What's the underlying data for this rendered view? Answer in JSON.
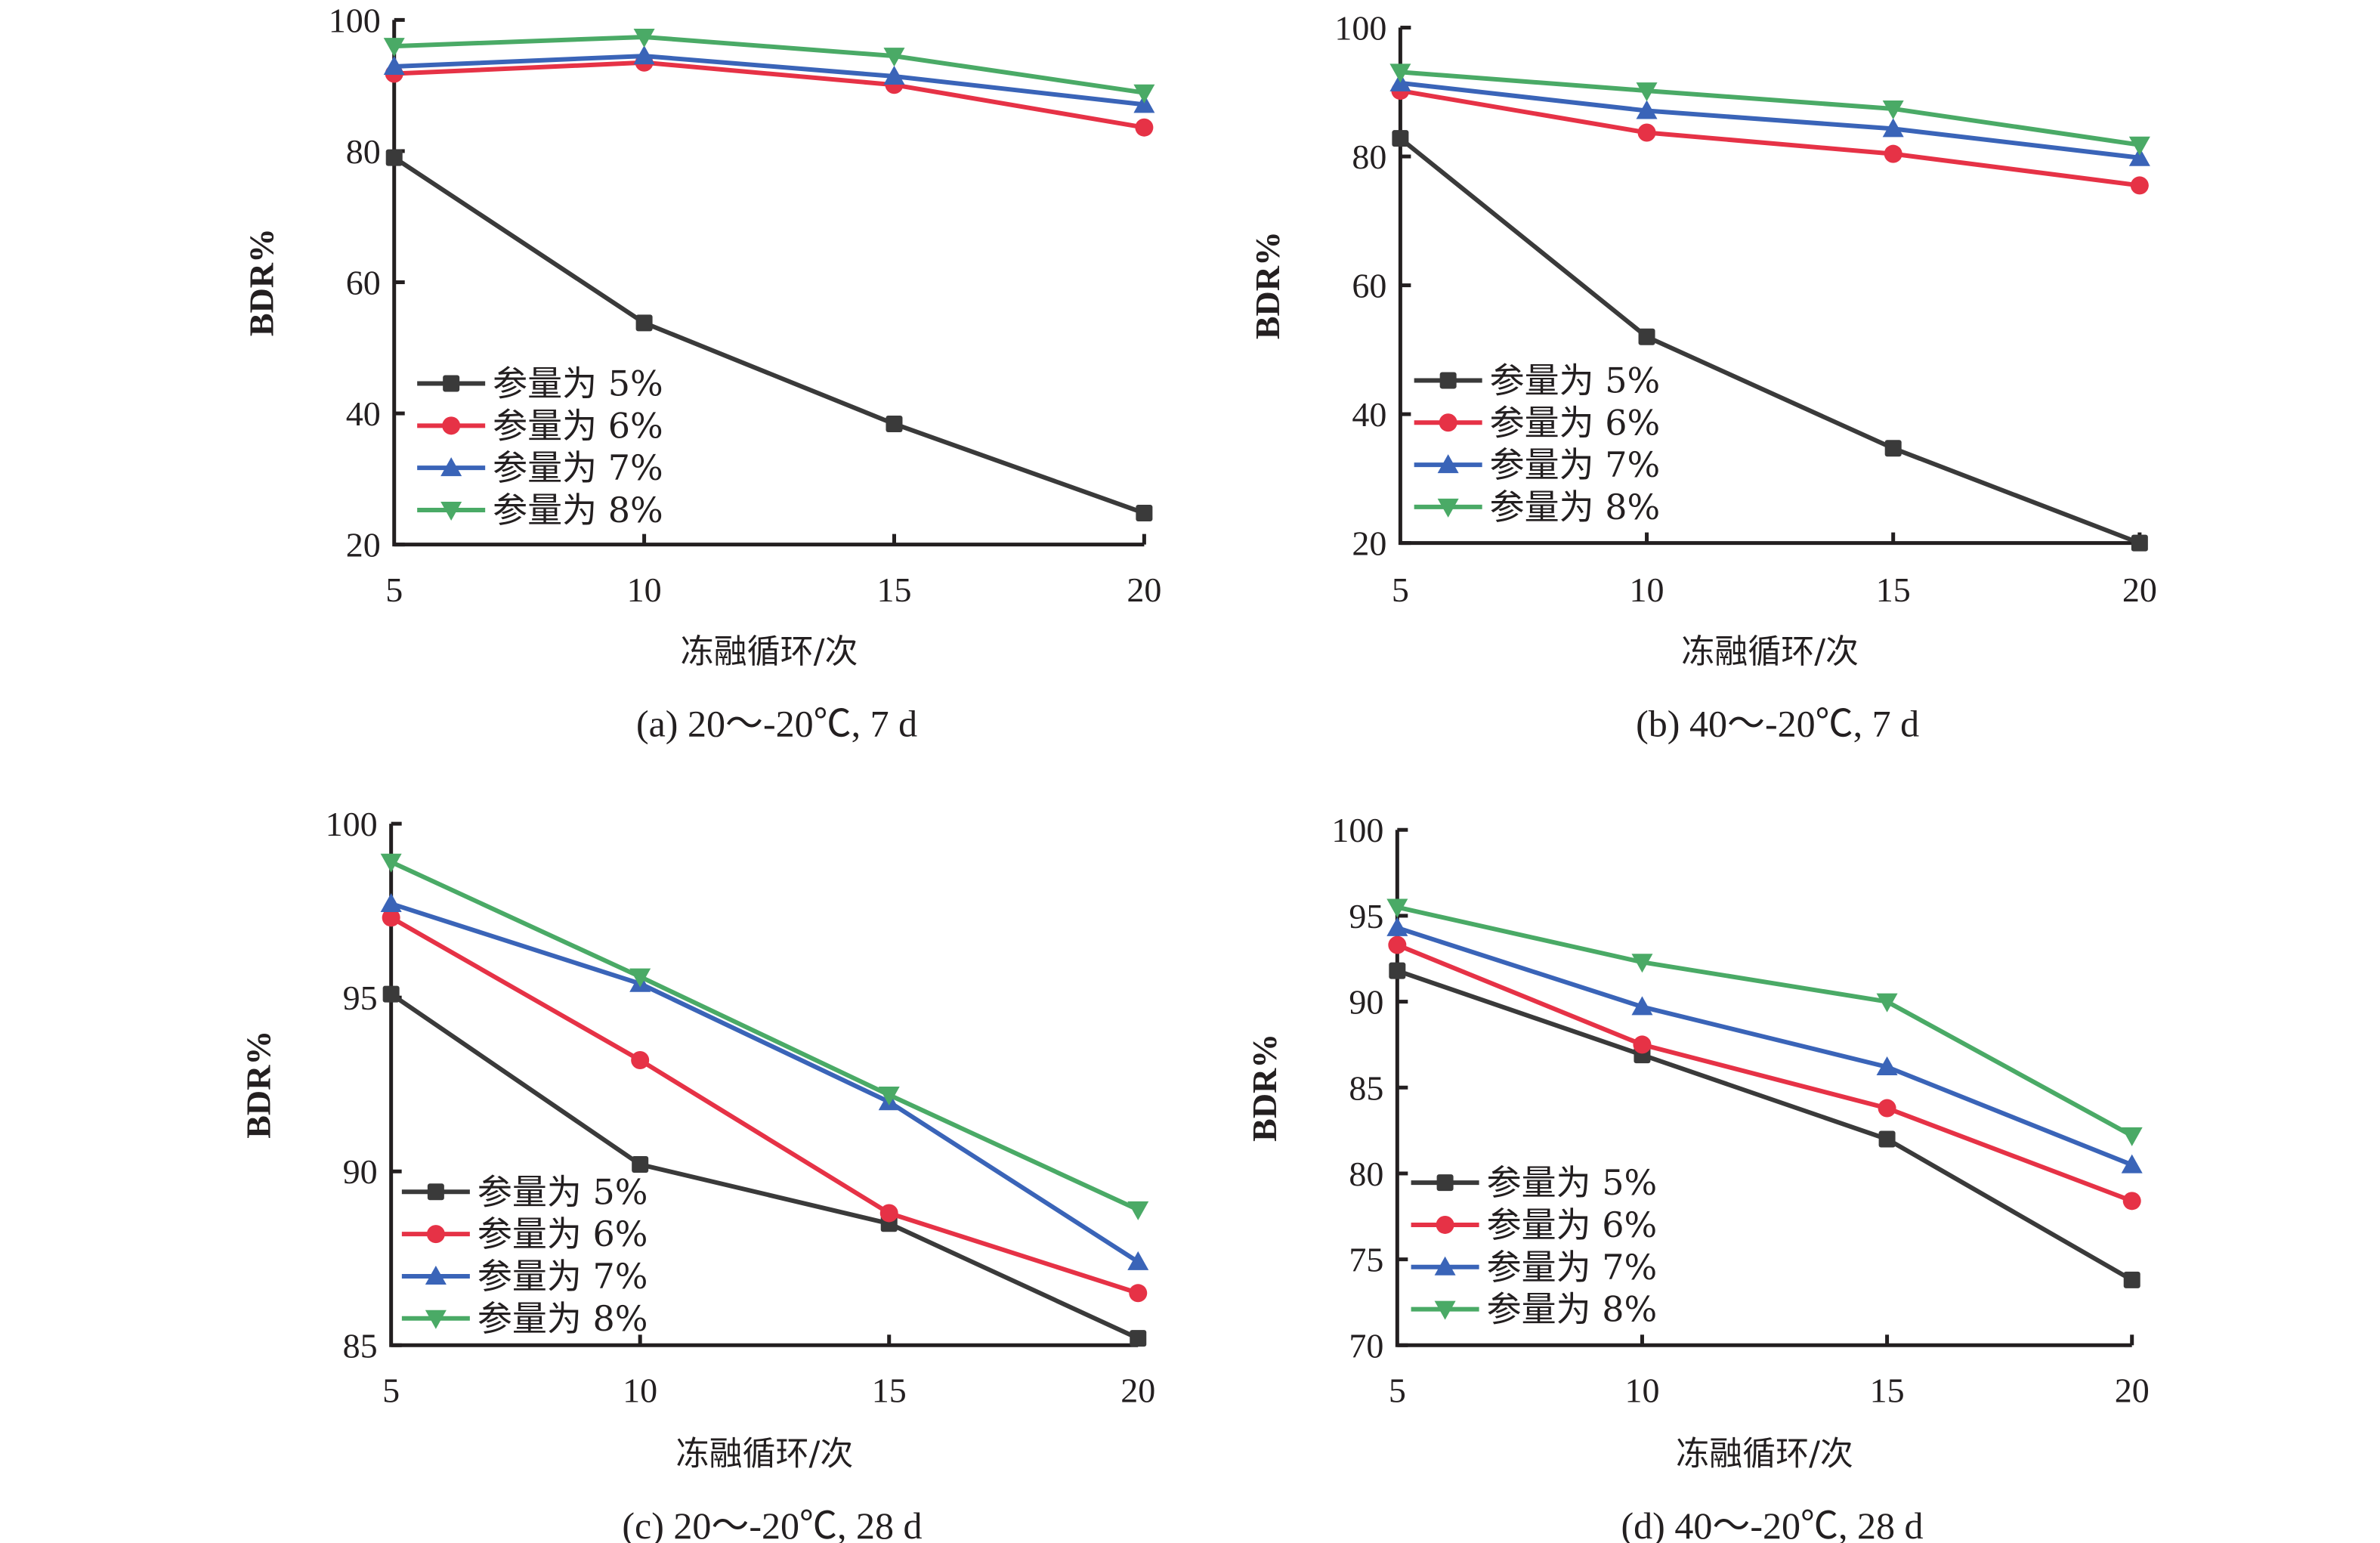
{
  "figure": {
    "series_colors": {
      "参量为 5%": "#3a3a3a",
      "参量为 6%": "#e63246",
      "参量为 7%": "#3a64b8",
      "参量为 8%": "#4aaa66"
    },
    "series_markers": {
      "参量为 5%": "square",
      "参量为 6%": "circle",
      "参量为 7%": "triangle-up",
      "参量为 8%": "triangle-down"
    }
  },
  "chart_data": [
    {
      "type": "line",
      "title": "(a) 20～-20℃, 7 d",
      "xlabel": "冻融循环/次",
      "ylabel": "BDR%",
      "x": [
        5,
        10,
        15,
        20
      ],
      "xticks": [
        "5",
        "10",
        "15",
        "20"
      ],
      "yticks": [
        "20",
        "40",
        "60",
        "80",
        "100"
      ],
      "ylim": [
        20,
        100
      ],
      "grid": false,
      "legend_position": "bottom-left",
      "series": [
        {
          "name": "参量为 5%",
          "values": [
            79.0,
            53.8,
            38.4,
            24.8
          ]
        },
        {
          "name": "参量为 6%",
          "values": [
            91.8,
            93.5,
            90.1,
            83.6
          ]
        },
        {
          "name": "参量为 7%",
          "values": [
            92.9,
            94.5,
            91.4,
            87.1
          ]
        },
        {
          "name": "参量为 8%",
          "values": [
            96.0,
            97.4,
            94.5,
            88.9
          ]
        }
      ]
    },
    {
      "type": "line",
      "title": "(b) 40～-20℃, 7 d",
      "xlabel": "冻融循环/次",
      "ylabel": "BDR%",
      "x": [
        5,
        10,
        15,
        20
      ],
      "xticks": [
        "5",
        "10",
        "15",
        "20"
      ],
      "yticks": [
        "20",
        "40",
        "60",
        "80",
        "100"
      ],
      "ylim": [
        20,
        100
      ],
      "grid": false,
      "legend_position": "bottom-left",
      "series": [
        {
          "name": "参量为 5%",
          "values": [
            82.8,
            52.0,
            34.7,
            20.0
          ]
        },
        {
          "name": "参量为 6%",
          "values": [
            90.2,
            83.7,
            80.4,
            75.5
          ]
        },
        {
          "name": "参量为 7%",
          "values": [
            91.4,
            87.1,
            84.3,
            79.8
          ]
        },
        {
          "name": "参量为 8%",
          "values": [
            93.1,
            90.2,
            87.4,
            81.8
          ]
        }
      ]
    },
    {
      "type": "line",
      "title": "(c) 20～-20℃, 28 d",
      "xlabel": "冻融循环/次",
      "ylabel": "BDR%",
      "x": [
        5,
        10,
        15,
        20
      ],
      "xticks": [
        "5",
        "10",
        "15",
        "20"
      ],
      "yticks": [
        "85",
        "90",
        "95",
        "100"
      ],
      "ylim": [
        85,
        100
      ],
      "grid": false,
      "legend_position": "bottom-left",
      "series": [
        {
          "name": "参量为 5%",
          "values": [
            95.1,
            90.2,
            88.5,
            85.2
          ]
        },
        {
          "name": "参量为 6%",
          "values": [
            97.3,
            93.2,
            88.8,
            86.5
          ]
        },
        {
          "name": "参量为 7%",
          "values": [
            97.7,
            95.4,
            92.0,
            87.4
          ]
        },
        {
          "name": "参量为 8%",
          "values": [
            98.9,
            95.6,
            92.2,
            88.9
          ]
        }
      ]
    },
    {
      "type": "line",
      "title": "(d) 40～-20℃, 28 d",
      "xlabel": "冻融循环/次",
      "ylabel": "BDR%",
      "x": [
        5,
        10,
        15,
        20
      ],
      "xticks": [
        "5",
        "10",
        "15",
        "20"
      ],
      "yticks": [
        "70",
        "75",
        "80",
        "85",
        "90",
        "95",
        "100"
      ],
      "ylim": [
        70,
        100
      ],
      "grid": false,
      "legend_position": "bottom-left",
      "series": [
        {
          "name": "参量为 5%",
          "values": [
            91.8,
            86.9,
            82.0,
            73.8
          ]
        },
        {
          "name": "参量为 6%",
          "values": [
            93.3,
            87.5,
            83.8,
            78.4
          ]
        },
        {
          "name": "参量为 7%",
          "values": [
            94.3,
            89.7,
            86.2,
            80.5
          ]
        },
        {
          "name": "参量为 8%",
          "values": [
            95.5,
            92.3,
            90.0,
            82.2
          ]
        }
      ]
    }
  ]
}
